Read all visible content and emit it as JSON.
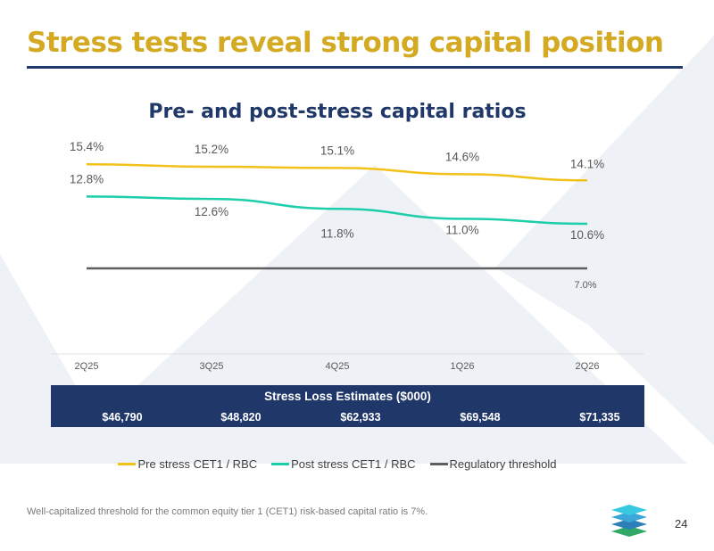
{
  "slide": {
    "title": "Stress tests reveal strong capital position",
    "footnote": "Well-capitalized threshold for the common equity tier 1 (CET1) risk-based capital ratio is 7%.",
    "page_number": "24",
    "colors": {
      "title": "#d4aa23",
      "navy": "#1f3769",
      "background_shapes": "#eef1f6"
    }
  },
  "chart_data": {
    "type": "line",
    "title": "Pre- and post-stress capital ratios",
    "categories": [
      "2Q25",
      "3Q25",
      "4Q25",
      "1Q26",
      "2Q26"
    ],
    "ylim": [
      0,
      16
    ],
    "grid": false,
    "legend_position": "bottom",
    "series": [
      {
        "name": "Pre stress CET1 / RBC",
        "values": [
          15.4,
          15.2,
          15.1,
          14.6,
          14.1
        ],
        "labels": [
          "15.4%",
          "15.2%",
          "15.1%",
          "14.6%",
          "14.1%"
        ],
        "color": "#f2c21b"
      },
      {
        "name": "Post stress CET1 / RBC",
        "values": [
          12.8,
          12.6,
          11.8,
          11.0,
          10.6
        ],
        "labels": [
          "12.8%",
          "12.6%",
          "11.8%",
          "11.0%",
          "10.6%"
        ],
        "color": "#1ecdaa"
      },
      {
        "name": "Regulatory threshold",
        "values": [
          7.0,
          7.0,
          7.0,
          7.0,
          7.0
        ],
        "labels": [
          "",
          "",
          "",
          "",
          "7.0%"
        ],
        "color": "#5f5f5f"
      }
    ]
  },
  "stress_table": {
    "title": "Stress Loss Estimates ($000)",
    "values": [
      "$46,790",
      "$48,820",
      "$62,933",
      "$69,548",
      "$71,335"
    ]
  }
}
